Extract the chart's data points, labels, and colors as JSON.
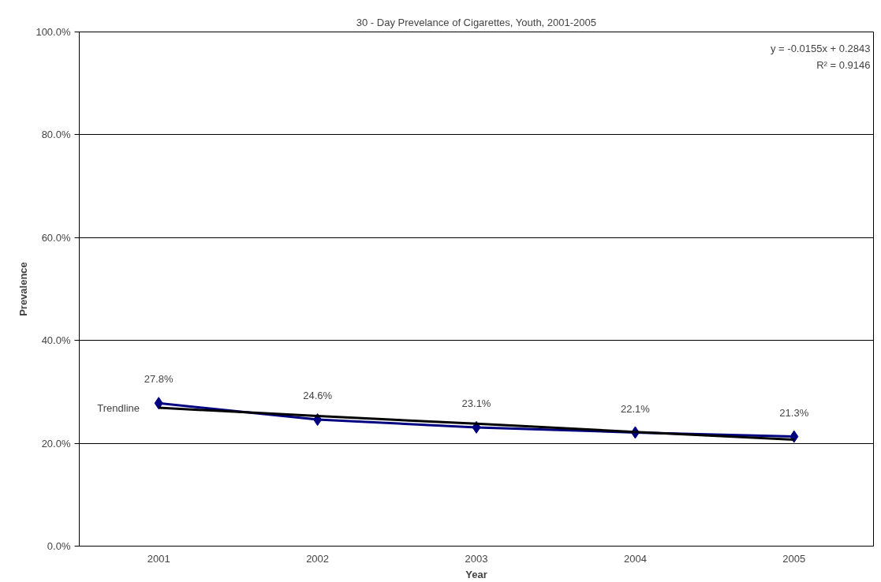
{
  "chart_data": {
    "type": "line",
    "title": "30 - Day Prevelance of Cigarettes, Youth, 2001-2005",
    "xlabel": "Year",
    "ylabel": "Prevalence",
    "categories": [
      "2001",
      "2002",
      "2003",
      "2004",
      "2005"
    ],
    "series": [
      {
        "color": "#000080",
        "values": [
          27.8,
          24.6,
          23.1,
          22.1,
          21.3
        ],
        "marker": "diamond",
        "data_labels": true,
        "value_labels": [
          "27.8%",
          "24.6%",
          "23.1%",
          "22.1%",
          "21.3%"
        ]
      },
      {
        "name": "Trendline",
        "color": "#000000",
        "values": [
          26.9,
          25.3,
          23.8,
          22.2,
          20.7
        ],
        "marker": "none"
      }
    ],
    "ylim": [
      0,
      100
    ],
    "yticks": [
      {
        "value": 0,
        "label": "0.0%"
      },
      {
        "value": 20,
        "label": "20.0%"
      },
      {
        "value": 40,
        "label": "40.0%"
      },
      {
        "value": 60,
        "label": "60.0%"
      },
      {
        "value": 80,
        "label": "80.0%"
      },
      {
        "value": 100,
        "label": "100.0%"
      }
    ],
    "grid": "y",
    "legend": false,
    "line_style": "solid",
    "annotations": [
      "y = -0.0155x + 0.2843",
      "R² = 0.9146"
    ]
  }
}
